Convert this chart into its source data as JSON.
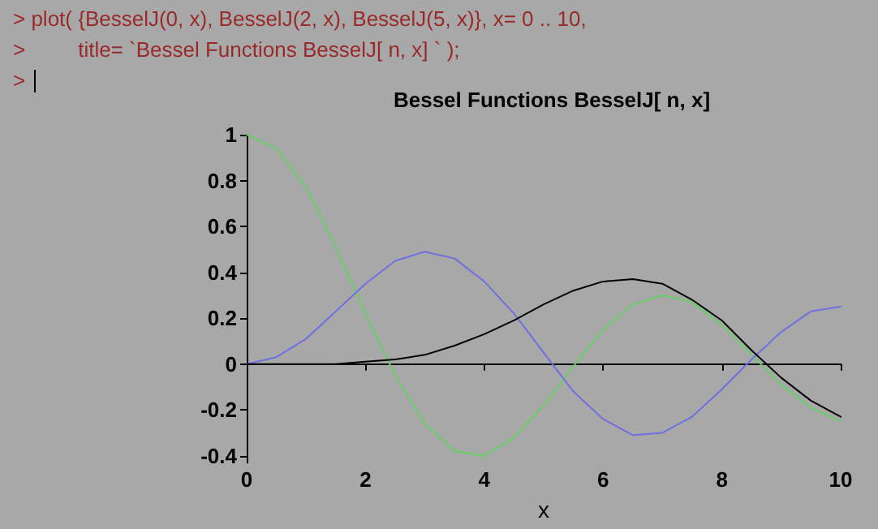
{
  "chart_data": {
    "type": "line",
    "title": "Bessel Functions BesselJ[ n, x]",
    "xlabel": "x",
    "annotations": [
      "> plot( {BesselJ(0, x), BesselJ(2, x), BesselJ(5, x)}, x= 0 .. 10,",
      ">         title= `Bessel Functions BesselJ[ n, x] ` );",
      ">"
    ],
    "x": [
      0,
      0.5,
      1,
      1.5,
      2,
      2.5,
      3,
      3.5,
      4,
      4.5,
      5,
      5.5,
      6,
      6.5,
      7,
      7.5,
      8,
      8.5,
      9,
      9.5,
      10
    ],
    "series": [
      {
        "color": "#66d066",
        "values": [
          1,
          0.94,
          0.77,
          0.51,
          0.22,
          -0.05,
          -0.26,
          -0.38,
          -0.4,
          -0.32,
          -0.18,
          -0.01,
          0.15,
          0.26,
          0.3,
          0.27,
          0.17,
          0.04,
          -0.09,
          -0.19,
          -0.25
        ]
      },
      {
        "color": "#7070e0",
        "values": [
          0,
          0.03,
          0.11,
          0.23,
          0.35,
          0.45,
          0.49,
          0.46,
          0.36,
          0.22,
          0.05,
          -0.12,
          -0.24,
          -0.31,
          -0.3,
          -0.23,
          -0.11,
          0.02,
          0.14,
          0.23,
          0.25
        ]
      },
      {
        "color": "#000000",
        "values": [
          0,
          0,
          0,
          0,
          0.01,
          0.02,
          0.04,
          0.08,
          0.13,
          0.19,
          0.26,
          0.32,
          0.36,
          0.37,
          0.35,
          0.28,
          0.19,
          0.06,
          -0.06,
          -0.16,
          -0.23
        ]
      }
    ],
    "xlim": [
      0,
      10
    ],
    "xticks": [
      0,
      2,
      4,
      6,
      8,
      10
    ],
    "ylim": [
      -0.43,
      1
    ],
    "yticks": [
      -0.4,
      -0.2,
      0,
      0.2,
      0.4,
      0.6,
      0.8,
      1
    ],
    "marker": "none",
    "line_style": "solid"
  }
}
